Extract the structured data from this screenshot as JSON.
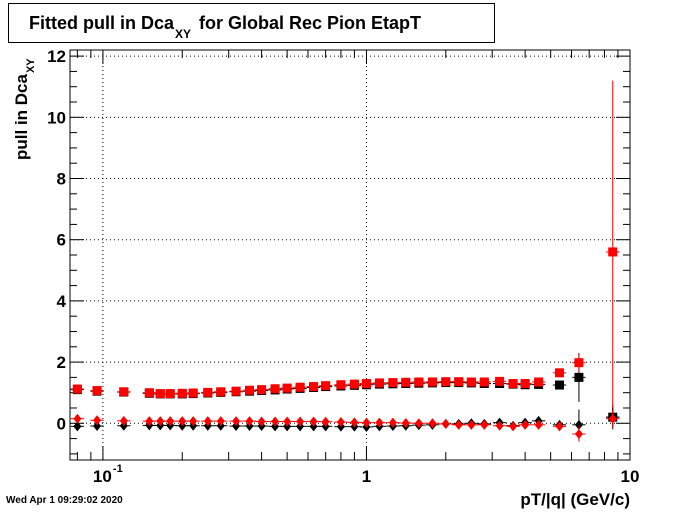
{
  "header": {
    "title_main": "Fitted pull in Dca",
    "title_sub": "XY",
    "title_rest": "for Global Rec Pion EtapT"
  },
  "footer": {
    "timestamp": "Wed Apr  1 09:29:02 2020"
  },
  "chart_data": {
    "type": "scatter",
    "xlabel": "pT/|q| (GeV/c)",
    "ylabel_main": "pull in Dca",
    "ylabel_sub": "XY",
    "xscale": "log",
    "xlim": [
      0.075,
      10
    ],
    "ylim": [
      -1.2,
      12.2
    ],
    "grid": true,
    "x_tick_labels": [
      "10",
      "1",
      "10"
    ],
    "x_tick_label_exponent": "-1",
    "y_tick_labels": [
      "0",
      "2",
      "4",
      "6",
      "8",
      "10",
      "12"
    ],
    "colors": {
      "black": "#000000",
      "red": "#ff0000"
    },
    "series": [
      {
        "color": "#000000",
        "marker": "square",
        "x": [
          0.08,
          0.095,
          0.12,
          0.15,
          0.165,
          0.18,
          0.2,
          0.22,
          0.25,
          0.28,
          0.32,
          0.36,
          0.4,
          0.45,
          0.5,
          0.56,
          0.63,
          0.7,
          0.8,
          0.9,
          1.0,
          1.12,
          1.26,
          1.41,
          1.58,
          1.78,
          2.0,
          2.24,
          2.5,
          2.8,
          3.2,
          3.6,
          4.0,
          4.5,
          5.4,
          6.4,
          8.6
        ],
        "y": [
          1.1,
          1.05,
          1.02,
          0.98,
          0.96,
          0.96,
          0.96,
          0.97,
          0.99,
          1.01,
          1.03,
          1.05,
          1.07,
          1.09,
          1.12,
          1.14,
          1.17,
          1.2,
          1.22,
          1.24,
          1.26,
          1.28,
          1.29,
          1.3,
          1.31,
          1.32,
          1.33,
          1.33,
          1.32,
          1.3,
          1.3,
          1.28,
          1.26,
          1.27,
          1.25,
          1.5,
          0.2
        ],
        "yerr": [
          0.03,
          0.02,
          0.02,
          0.02,
          0.02,
          0.02,
          0.02,
          0.02,
          0.02,
          0.02,
          0.02,
          0.02,
          0.02,
          0.02,
          0.02,
          0.02,
          0.02,
          0.02,
          0.02,
          0.02,
          0.02,
          0.02,
          0.02,
          0.02,
          0.02,
          0.02,
          0.02,
          0.03,
          0.03,
          0.03,
          0.04,
          0.05,
          0.06,
          0.08,
          0.12,
          0.8,
          0.4
        ]
      },
      {
        "color": "#ff0000",
        "marker": "square",
        "x": [
          0.08,
          0.095,
          0.12,
          0.15,
          0.165,
          0.18,
          0.2,
          0.22,
          0.25,
          0.28,
          0.32,
          0.36,
          0.4,
          0.45,
          0.5,
          0.56,
          0.63,
          0.7,
          0.8,
          0.9,
          1.0,
          1.12,
          1.26,
          1.41,
          1.58,
          1.78,
          2.0,
          2.24,
          2.5,
          2.8,
          3.2,
          3.6,
          4.0,
          4.5,
          5.4,
          6.4,
          8.6
        ],
        "y": [
          1.12,
          1.07,
          1.03,
          1.0,
          0.97,
          0.97,
          0.98,
          0.99,
          1.01,
          1.03,
          1.05,
          1.08,
          1.1,
          1.13,
          1.15,
          1.18,
          1.2,
          1.23,
          1.26,
          1.28,
          1.3,
          1.32,
          1.33,
          1.34,
          1.35,
          1.35,
          1.36,
          1.36,
          1.35,
          1.35,
          1.37,
          1.3,
          1.3,
          1.35,
          1.65,
          1.98,
          5.6
        ],
        "yerr": [
          0.03,
          0.02,
          0.02,
          0.02,
          0.02,
          0.02,
          0.02,
          0.02,
          0.02,
          0.02,
          0.02,
          0.02,
          0.02,
          0.02,
          0.02,
          0.02,
          0.02,
          0.02,
          0.02,
          0.02,
          0.02,
          0.02,
          0.02,
          0.02,
          0.02,
          0.02,
          0.02,
          0.03,
          0.03,
          0.03,
          0.04,
          0.05,
          0.06,
          0.08,
          0.12,
          0.3,
          5.6
        ]
      },
      {
        "color": "#000000",
        "marker": "diamond",
        "x": [
          0.08,
          0.095,
          0.12,
          0.15,
          0.165,
          0.18,
          0.2,
          0.22,
          0.25,
          0.28,
          0.32,
          0.36,
          0.4,
          0.45,
          0.5,
          0.56,
          0.63,
          0.7,
          0.8,
          0.9,
          1.0,
          1.12,
          1.26,
          1.41,
          1.58,
          1.78,
          2.0,
          2.24,
          2.5,
          2.8,
          3.2,
          3.6,
          4.0,
          4.5,
          5.4,
          6.4,
          8.6
        ],
        "y": [
          -0.1,
          -0.09,
          -0.08,
          -0.07,
          -0.07,
          -0.07,
          -0.08,
          -0.08,
          -0.08,
          -0.08,
          -0.09,
          -0.09,
          -0.09,
          -0.1,
          -0.1,
          -0.1,
          -0.1,
          -0.1,
          -0.11,
          -0.11,
          -0.12,
          -0.1,
          -0.09,
          -0.08,
          -0.06,
          -0.05,
          -0.02,
          -0.02,
          0.0,
          -0.02,
          0.02,
          -0.08,
          0.02,
          0.08,
          -0.05,
          -0.05,
          0.2
        ],
        "yerr": [
          0.02,
          0.02,
          0.02,
          0.02,
          0.02,
          0.02,
          0.02,
          0.02,
          0.02,
          0.02,
          0.02,
          0.02,
          0.02,
          0.02,
          0.02,
          0.02,
          0.02,
          0.02,
          0.02,
          0.02,
          0.02,
          0.02,
          0.02,
          0.02,
          0.02,
          0.02,
          0.02,
          0.03,
          0.03,
          0.03,
          0.04,
          0.05,
          0.06,
          0.08,
          0.12,
          0.5,
          0.3
        ]
      },
      {
        "color": "#ff0000",
        "marker": "diamond",
        "x": [
          0.08,
          0.095,
          0.12,
          0.15,
          0.165,
          0.18,
          0.2,
          0.22,
          0.25,
          0.28,
          0.32,
          0.36,
          0.4,
          0.45,
          0.5,
          0.56,
          0.63,
          0.7,
          0.8,
          0.9,
          1.0,
          1.12,
          1.26,
          1.41,
          1.58,
          1.78,
          2.0,
          2.24,
          2.5,
          2.8,
          3.2,
          3.6,
          4.0,
          4.5,
          5.4,
          6.4,
          8.6
        ],
        "y": [
          0.15,
          0.1,
          0.08,
          0.07,
          0.07,
          0.07,
          0.07,
          0.07,
          0.07,
          0.07,
          0.07,
          0.07,
          0.06,
          0.06,
          0.06,
          0.06,
          0.06,
          0.05,
          0.04,
          0.03,
          0.02,
          0.02,
          0.02,
          0.01,
          0.0,
          0.0,
          -0.02,
          -0.05,
          -0.05,
          -0.05,
          -0.08,
          -0.1,
          -0.05,
          -0.05,
          -0.1,
          -0.35,
          0.15
        ],
        "yerr": [
          0.02,
          0.02,
          0.02,
          0.02,
          0.02,
          0.02,
          0.02,
          0.02,
          0.02,
          0.02,
          0.02,
          0.02,
          0.02,
          0.02,
          0.02,
          0.02,
          0.02,
          0.02,
          0.02,
          0.02,
          0.02,
          0.02,
          0.02,
          0.02,
          0.02,
          0.02,
          0.02,
          0.03,
          0.03,
          0.03,
          0.04,
          0.05,
          0.06,
          0.08,
          0.12,
          0.25,
          0.3
        ]
      }
    ]
  }
}
